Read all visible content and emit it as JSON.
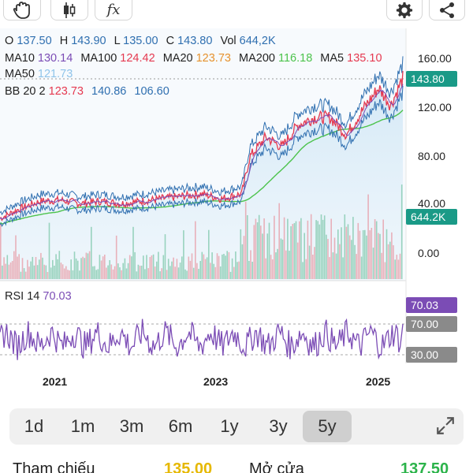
{
  "toolbar": {
    "icons": [
      "hand-pan-icon",
      "candlestick-icon",
      "function-icon",
      "gear-icon",
      "share-icon"
    ],
    "fx_label": "fx"
  },
  "ohlc": {
    "o_label": "O",
    "o": "137.50",
    "h_label": "H",
    "h": "143.90",
    "l_label": "L",
    "l": "135.00",
    "c_label": "C",
    "c": "143.80",
    "vol_label": "Vol",
    "vol": "644,2K"
  },
  "ma": {
    "ma10_label": "MA10",
    "ma10": "130.14",
    "ma100_label": "MA100",
    "ma100": "124.42",
    "ma20_label": "MA20",
    "ma20": "123.73",
    "ma200_label": "MA200",
    "ma200": "116.18",
    "ma5_label": "MA5",
    "ma5": "135.10",
    "ma50_label": "MA50",
    "ma50": "121.73"
  },
  "bb": {
    "label": "BB 20 2",
    "mid": "123.73",
    "upper": "140.86",
    "lower": "106.60"
  },
  "price_axis": [
    "160.00",
    "120.00",
    "80.00",
    "40.00",
    "0.00"
  ],
  "tags": {
    "price": "143.80",
    "volume": "644.2K",
    "rsi": "70.03",
    "rsi_upper": "70.00",
    "rsi_lower": "30.00"
  },
  "rsi": {
    "label": "RSI 14",
    "value": "70.03"
  },
  "x_axis": [
    "2021",
    "2023",
    "2025"
  ],
  "periods": [
    {
      "label": "1d"
    },
    {
      "label": "1m"
    },
    {
      "label": "3m"
    },
    {
      "label": "6m"
    },
    {
      "label": "1y"
    },
    {
      "label": "3y"
    },
    {
      "label": "5y"
    }
  ],
  "active_period": "5y",
  "info": {
    "ref_label": "Tham chiếu",
    "ref_value": "135.00",
    "open_label": "Mở cửa",
    "open_value": "137.50"
  },
  "colors": {
    "red": "#e53950",
    "blue": "#2f6fb0",
    "green": "#4cc34c",
    "orange": "#e6922e",
    "purple": "#7b4cb5",
    "teal": "#1a9a87",
    "light_blue": "#8fc4ea",
    "gray_tag": "#8a8a8a"
  },
  "chart_data": {
    "type": "line",
    "x_ticks": [
      "2021",
      "2023",
      "2025"
    ],
    "price_ylim": [
      0,
      160
    ],
    "price_series_approx": [
      {
        "t": 0.0,
        "close": 30
      },
      {
        "t": 0.05,
        "close": 38
      },
      {
        "t": 0.1,
        "close": 44
      },
      {
        "t": 0.15,
        "close": 45
      },
      {
        "t": 0.2,
        "close": 42
      },
      {
        "t": 0.25,
        "close": 44
      },
      {
        "t": 0.3,
        "close": 42
      },
      {
        "t": 0.35,
        "close": 44
      },
      {
        "t": 0.4,
        "close": 46
      },
      {
        "t": 0.45,
        "close": 48
      },
      {
        "t": 0.5,
        "close": 50
      },
      {
        "t": 0.55,
        "close": 46
      },
      {
        "t": 0.6,
        "close": 50
      },
      {
        "t": 0.62,
        "close": 80
      },
      {
        "t": 0.66,
        "close": 96
      },
      {
        "t": 0.7,
        "close": 88
      },
      {
        "t": 0.74,
        "close": 106
      },
      {
        "t": 0.78,
        "close": 112
      },
      {
        "t": 0.82,
        "close": 112
      },
      {
        "t": 0.86,
        "close": 98
      },
      {
        "t": 0.9,
        "close": 118
      },
      {
        "t": 0.94,
        "close": 136
      },
      {
        "t": 0.97,
        "close": 122
      },
      {
        "t": 1.0,
        "close": 143.8
      }
    ],
    "rsi_levels": [
      70,
      30
    ]
  }
}
